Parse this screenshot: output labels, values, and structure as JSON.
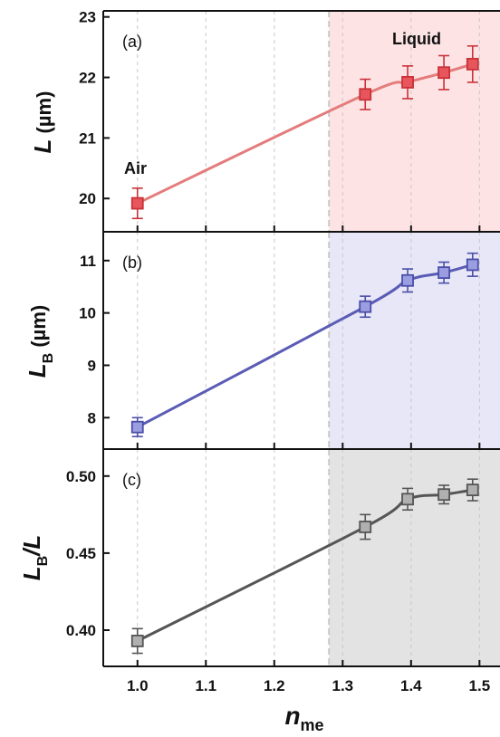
{
  "chart_data": [
    {
      "type": "line",
      "panel_label": "(a)",
      "ylabel": {
        "main": "L",
        "paren": " (µm)"
      },
      "ylim": [
        19.45,
        23.1
      ],
      "yticks": [
        "20",
        "21",
        "22",
        "23"
      ],
      "annotations": [
        "Air",
        "Liquid"
      ],
      "colors": {
        "line": "#e47c7c",
        "marker_fill": "#e8555d",
        "marker_edge": "#c83238",
        "shade": "#fde3e4"
      },
      "series": [
        {
          "x": [
            1.0,
            1.333,
            1.395,
            1.448,
            1.49
          ],
          "y": [
            19.92,
            21.72,
            21.92,
            22.08,
            22.22
          ],
          "err": [
            0.25,
            0.25,
            0.27,
            0.28,
            0.3
          ]
        }
      ]
    },
    {
      "type": "line",
      "panel_label": "(b)",
      "ylabel": {
        "main": "L",
        "sub": "B",
        "paren": " (µm)"
      },
      "ylim": [
        7.4,
        11.55
      ],
      "yticks": [
        "8",
        "9",
        "10",
        "11"
      ],
      "colors": {
        "line": "#5a5cb5",
        "marker_fill": "#9a9ee0",
        "marker_edge": "#4b4ea8",
        "shade": "#e7e7f7"
      },
      "series": [
        {
          "x": [
            1.0,
            1.333,
            1.395,
            1.448,
            1.49
          ],
          "y": [
            7.82,
            10.12,
            10.62,
            10.77,
            10.92
          ],
          "err": [
            0.18,
            0.2,
            0.22,
            0.2,
            0.22
          ]
        }
      ]
    },
    {
      "type": "line",
      "panel_label": "(c)",
      "ylabel": {
        "main": "L",
        "sub": "B",
        "tail": "/L"
      },
      "ylim": [
        0.3765,
        0.5175
      ],
      "yticks": [
        "0.40",
        "0.45",
        "0.50"
      ],
      "xlabel": {
        "main": "n",
        "sub": "me"
      },
      "xticks": [
        "1.0",
        "1.1",
        "1.2",
        "1.3",
        "1.4",
        "1.5"
      ],
      "colors": {
        "line": "#555555",
        "marker_fill": "#b0b0b0",
        "marker_edge": "#555555",
        "shade": "#e3e3e3"
      },
      "series": [
        {
          "x": [
            1.0,
            1.333,
            1.395,
            1.448,
            1.49
          ],
          "y": [
            0.393,
            0.467,
            0.485,
            0.488,
            0.491
          ],
          "err": [
            0.008,
            0.008,
            0.007,
            0.006,
            0.007
          ]
        }
      ]
    }
  ],
  "xlim": [
    0.95,
    1.53
  ],
  "shade_start": 1.28,
  "grid": "vertical-dashed"
}
